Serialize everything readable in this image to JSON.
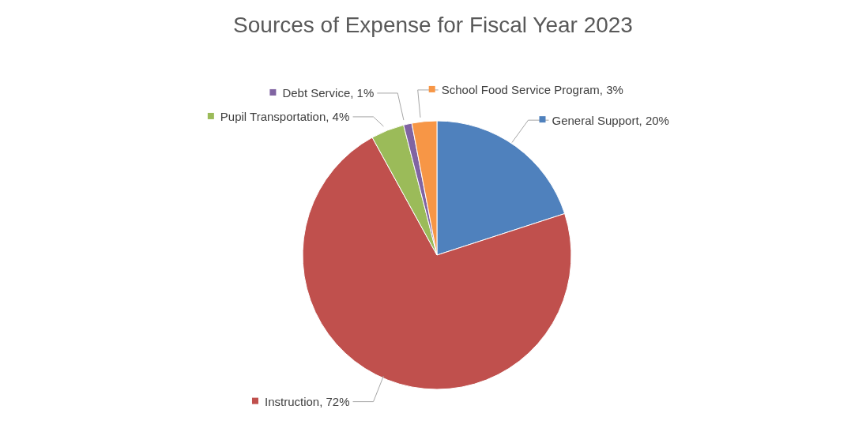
{
  "chart_data": {
    "type": "pie",
    "title": "Sources of Expense for Fiscal Year 2023",
    "categories": [
      "General Support",
      "Instruction",
      "Pupil Transportation",
      "Debt Service",
      "School Food Service Program"
    ],
    "values": [
      20,
      72,
      4,
      1,
      3
    ],
    "value_labels": [
      "20%",
      "72%",
      "4%",
      "1%",
      "3%"
    ],
    "colors": [
      "#4f81bd",
      "#c0504d",
      "#9bbb59",
      "#8064a2",
      "#f79646"
    ],
    "legend": "top"
  }
}
